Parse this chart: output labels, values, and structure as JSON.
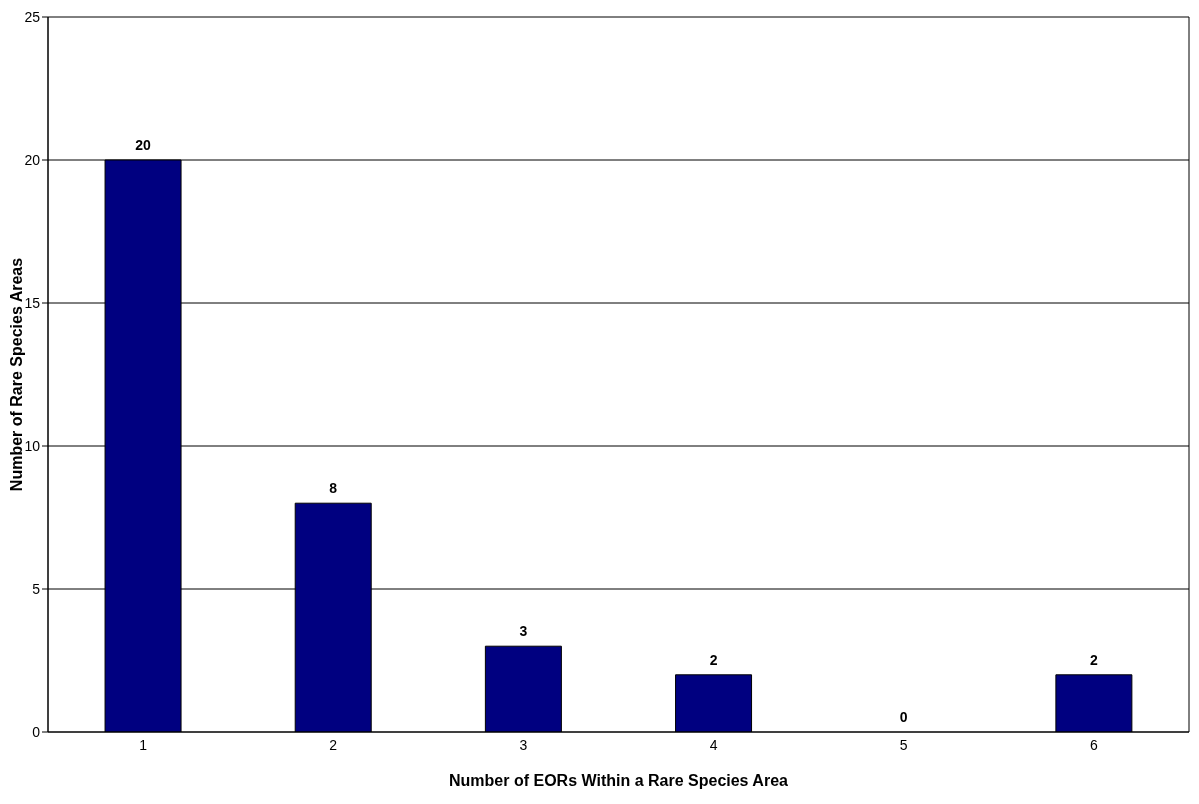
{
  "chart_data": {
    "type": "bar",
    "xlabel": "Number of EORs Within a Rare Species Area",
    "ylabel": "Number of Rare Species Areas",
    "categories": [
      "1",
      "2",
      "3",
      "4",
      "5",
      "6"
    ],
    "values": [
      20,
      8,
      3,
      2,
      0,
      2
    ],
    "color": "#000080",
    "ylim": [
      0,
      25
    ],
    "yticks": [
      0,
      5,
      10,
      15,
      20,
      25
    ],
    "grid": "y",
    "data_labels": true
  }
}
